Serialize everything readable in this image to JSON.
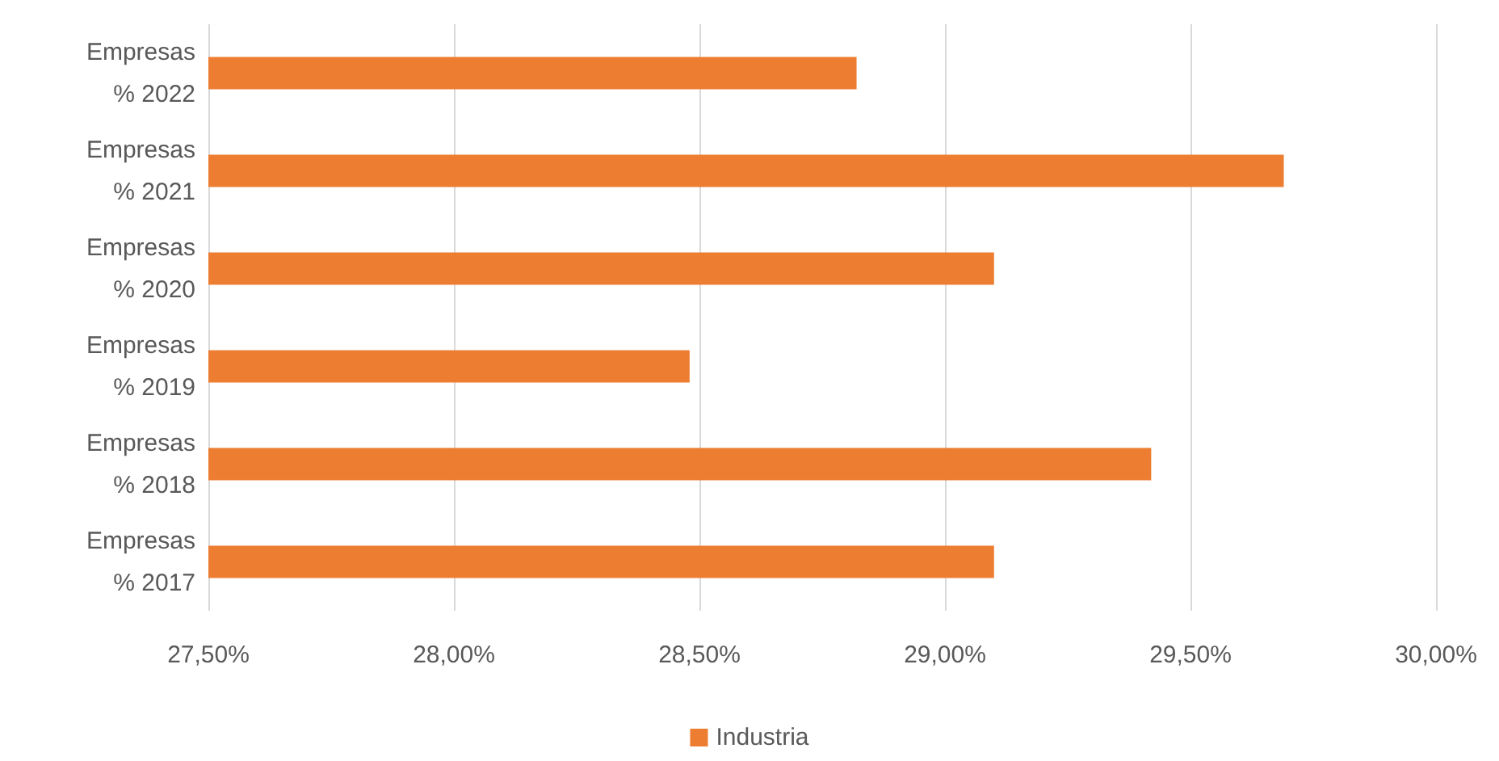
{
  "chart_data": {
    "type": "bar",
    "orientation": "horizontal",
    "categories": [
      "Empresas\n% 2022",
      "Empresas\n% 2021",
      "Empresas\n% 2020",
      "Empresas\n% 2019",
      "Empresas\n% 2018",
      "Empresas\n% 2017"
    ],
    "series": [
      {
        "name": "Industria",
        "color": "#ed7d31",
        "values": [
          28.82,
          29.69,
          29.1,
          28.48,
          29.42,
          29.1
        ]
      }
    ],
    "xlim": [
      27.5,
      30.0
    ],
    "xticks": [
      {
        "value": 27.5,
        "label": "27,50%"
      },
      {
        "value": 28.0,
        "label": "28,00%"
      },
      {
        "value": 28.5,
        "label": "28,50%"
      },
      {
        "value": 29.0,
        "label": "29,00%"
      },
      {
        "value": 29.5,
        "label": "29,50%"
      },
      {
        "value": 30.0,
        "label": "30,00%"
      }
    ],
    "grid": "x",
    "legend": "bottom"
  }
}
